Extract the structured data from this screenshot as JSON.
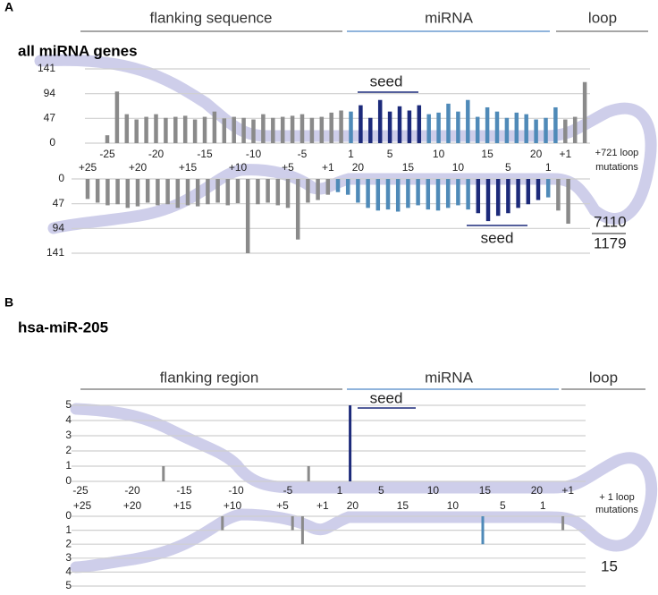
{
  "chart_data": [
    {
      "type": "bar",
      "panel": "A",
      "title": "all miRNA genes",
      "regions": [
        "flanking sequence",
        "miRNA",
        "loop"
      ],
      "seed_label": "seed",
      "loop_note": [
        "+721 loop",
        "mutations"
      ],
      "totals": [
        7110,
        1179
      ],
      "categories": [
        "-25",
        null,
        null,
        null,
        null,
        "-20",
        null,
        null,
        null,
        null,
        "-15",
        null,
        null,
        null,
        null,
        "-10",
        null,
        null,
        null,
        null,
        "-5",
        null,
        null,
        null,
        null,
        "1",
        null,
        null,
        null,
        "5",
        null,
        null,
        null,
        null,
        "10",
        null,
        null,
        null,
        null,
        "15",
        null,
        null,
        null,
        null,
        "20",
        null,
        null,
        "+1",
        null,
        null
      ],
      "values": [
        15,
        98,
        55,
        45,
        50,
        55,
        48,
        50,
        52,
        45,
        50,
        60,
        47,
        50,
        48,
        45,
        55,
        48,
        50,
        52,
        55,
        48,
        50,
        58,
        62,
        60,
        72,
        48,
        82,
        60,
        70,
        62,
        72,
        55,
        58,
        75,
        60,
        82,
        50,
        68,
        60,
        48,
        58,
        55,
        45,
        48,
        68,
        45,
        50,
        116
      ],
      "colors": [
        "#8a8a8a",
        "#8a8a8a",
        "#8a8a8a",
        "#8a8a8a",
        "#8a8a8a",
        "#8a8a8a",
        "#8a8a8a",
        "#8a8a8a",
        "#8a8a8a",
        "#8a8a8a",
        "#8a8a8a",
        "#8a8a8a",
        "#8a8a8a",
        "#8a8a8a",
        "#8a8a8a",
        "#8a8a8a",
        "#8a8a8a",
        "#8a8a8a",
        "#8a8a8a",
        "#8a8a8a",
        "#8a8a8a",
        "#8a8a8a",
        "#8a8a8a",
        "#8a8a8a",
        "#8a8a8a",
        "#4f8ab8",
        "#1c2a7a",
        "#1c2a7a",
        "#1c2a7a",
        "#1c2a7a",
        "#1c2a7a",
        "#1c2a7a",
        "#1c2a7a",
        "#4f8ab8",
        "#4f8ab8",
        "#4f8ab8",
        "#4f8ab8",
        "#4f8ab8",
        "#4f8ab8",
        "#4f8ab8",
        "#4f8ab8",
        "#4f8ab8",
        "#4f8ab8",
        "#4f8ab8",
        "#4f8ab8",
        "#4f8ab8",
        "#4f8ab8",
        "#8a8a8a",
        "#8a8a8a",
        "#8a8a8a"
      ],
      "ylim": [
        0,
        141
      ],
      "yticks": [
        0,
        47,
        94,
        141
      ],
      "grid": true,
      "y_reversed": false
    },
    {
      "type": "bar",
      "seed_label": "seed",
      "categories": [
        "+25",
        null,
        null,
        null,
        null,
        "+20",
        null,
        null,
        null,
        null,
        "+15",
        null,
        null,
        null,
        null,
        "+10",
        null,
        null,
        null,
        null,
        "+5",
        null,
        null,
        null,
        "+1",
        null,
        null,
        "20",
        null,
        null,
        null,
        null,
        "15",
        null,
        null,
        null,
        null,
        "10",
        null,
        null,
        null,
        null,
        "5",
        null,
        null,
        null,
        "1",
        null,
        null
      ],
      "values": [
        38,
        45,
        50,
        48,
        55,
        52,
        45,
        50,
        48,
        55,
        50,
        52,
        48,
        45,
        50,
        46,
        141,
        48,
        45,
        50,
        55,
        115,
        45,
        40,
        30,
        25,
        30,
        45,
        55,
        60,
        58,
        62,
        55,
        50,
        58,
        60,
        55,
        50,
        58,
        65,
        80,
        70,
        65,
        55,
        48,
        40,
        35,
        60,
        85
      ],
      "colors": [
        "#8a8a8a",
        "#8a8a8a",
        "#8a8a8a",
        "#8a8a8a",
        "#8a8a8a",
        "#8a8a8a",
        "#8a8a8a",
        "#8a8a8a",
        "#8a8a8a",
        "#8a8a8a",
        "#8a8a8a",
        "#8a8a8a",
        "#8a8a8a",
        "#8a8a8a",
        "#8a8a8a",
        "#8a8a8a",
        "#8a8a8a",
        "#8a8a8a",
        "#8a8a8a",
        "#8a8a8a",
        "#8a8a8a",
        "#8a8a8a",
        "#8a8a8a",
        "#8a8a8a",
        "#8a8a8a",
        "#4f8ab8",
        "#4f8ab8",
        "#4f8ab8",
        "#4f8ab8",
        "#4f8ab8",
        "#4f8ab8",
        "#4f8ab8",
        "#4f8ab8",
        "#4f8ab8",
        "#4f8ab8",
        "#4f8ab8",
        "#4f8ab8",
        "#4f8ab8",
        "#4f8ab8",
        "#1c2a7a",
        "#1c2a7a",
        "#1c2a7a",
        "#1c2a7a",
        "#1c2a7a",
        "#1c2a7a",
        "#1c2a7a",
        "#4f8ab8",
        "#8a8a8a",
        "#8a8a8a"
      ],
      "ylim": [
        0,
        141
      ],
      "yticks": [
        0,
        47,
        94,
        141
      ],
      "grid": true,
      "y_reversed": true
    },
    {
      "type": "bar",
      "panel": "B",
      "title": "hsa-miR-205",
      "regions": [
        "flanking region",
        "miRNA",
        "loop"
      ],
      "seed_label": "seed",
      "loop_note": [
        "+ 1 loop",
        "mutations"
      ],
      "totals": [
        15
      ],
      "categories": [
        "-25",
        null,
        null,
        null,
        null,
        "-20",
        null,
        null,
        null,
        null,
        "-15",
        null,
        null,
        null,
        null,
        "-10",
        null,
        null,
        null,
        null,
        "-5",
        null,
        null,
        null,
        null,
        "1",
        null,
        null,
        null,
        "5",
        null,
        null,
        null,
        null,
        "10",
        null,
        null,
        null,
        null,
        "15",
        null,
        null,
        null,
        null,
        "20",
        null,
        null,
        "+1",
        null,
        null
      ],
      "values": [
        0,
        0,
        0,
        0,
        0,
        0,
        0,
        0,
        1,
        0,
        0,
        0,
        0,
        0,
        0,
        0,
        0,
        0,
        0,
        0,
        0,
        0,
        1,
        0,
        0,
        0,
        5,
        0,
        0,
        0,
        0,
        0,
        0,
        0,
        0,
        0,
        0,
        0,
        0,
        0,
        0,
        0,
        0,
        0,
        0,
        0,
        0,
        0,
        0,
        0
      ],
      "colors": [
        "#8a8a8a",
        "#8a8a8a",
        "#8a8a8a",
        "#8a8a8a",
        "#8a8a8a",
        "#8a8a8a",
        "#8a8a8a",
        "#8a8a8a",
        "#8a8a8a",
        "#8a8a8a",
        "#8a8a8a",
        "#8a8a8a",
        "#8a8a8a",
        "#8a8a8a",
        "#8a8a8a",
        "#8a8a8a",
        "#8a8a8a",
        "#8a8a8a",
        "#8a8a8a",
        "#8a8a8a",
        "#8a8a8a",
        "#8a8a8a",
        "#8a8a8a",
        "#8a8a8a",
        "#8a8a8a",
        "#4f8ab8",
        "#1c2a7a",
        "#1c2a7a",
        "#1c2a7a",
        "#1c2a7a",
        "#1c2a7a",
        "#1c2a7a",
        "#1c2a7a",
        "#4f8ab8",
        "#4f8ab8",
        "#4f8ab8",
        "#4f8ab8",
        "#4f8ab8",
        "#4f8ab8",
        "#4f8ab8",
        "#4f8ab8",
        "#4f8ab8",
        "#4f8ab8",
        "#4f8ab8",
        "#4f8ab8",
        "#4f8ab8",
        "#4f8ab8",
        "#8a8a8a",
        "#8a8a8a",
        "#8a8a8a"
      ],
      "ylim": [
        0,
        5
      ],
      "yticks": [
        0,
        1,
        2,
        3,
        4,
        5
      ],
      "grid": true,
      "y_reversed": false
    },
    {
      "type": "bar",
      "categories": [
        "+25",
        null,
        null,
        null,
        null,
        "+20",
        null,
        null,
        null,
        null,
        "+15",
        null,
        null,
        null,
        null,
        "+10",
        null,
        null,
        null,
        null,
        "+5",
        null,
        null,
        null,
        "+1",
        null,
        null,
        "20",
        null,
        null,
        null,
        null,
        "15",
        null,
        null,
        null,
        null,
        "10",
        null,
        null,
        null,
        null,
        "5",
        null,
        null,
        null,
        "1",
        null,
        null
      ],
      "values": [
        0,
        0,
        0,
        0,
        0,
        0,
        0,
        0,
        0,
        0,
        0,
        0,
        0,
        0,
        1,
        0,
        0,
        0,
        0,
        0,
        0,
        1,
        2,
        0,
        0,
        0,
        0,
        0,
        0,
        0,
        0,
        0,
        0,
        0,
        0,
        0,
        0,
        0,
        0,
        0,
        2,
        0,
        0,
        0,
        0,
        0,
        0,
        0,
        1
      ],
      "colors": [
        "#8a8a8a",
        "#8a8a8a",
        "#8a8a8a",
        "#8a8a8a",
        "#8a8a8a",
        "#8a8a8a",
        "#8a8a8a",
        "#8a8a8a",
        "#8a8a8a",
        "#8a8a8a",
        "#8a8a8a",
        "#8a8a8a",
        "#8a8a8a",
        "#8a8a8a",
        "#8a8a8a",
        "#8a8a8a",
        "#8a8a8a",
        "#8a8a8a",
        "#8a8a8a",
        "#8a8a8a",
        "#8a8a8a",
        "#8a8a8a",
        "#8a8a8a",
        "#8a8a8a",
        "#8a8a8a",
        "#4f8ab8",
        "#4f8ab8",
        "#4f8ab8",
        "#4f8ab8",
        "#4f8ab8",
        "#4f8ab8",
        "#4f8ab8",
        "#4f8ab8",
        "#4f8ab8",
        "#4f8ab8",
        "#4f8ab8",
        "#4f8ab8",
        "#4f8ab8",
        "#4f8ab8",
        "#1c2a7a",
        "#4f8ab8",
        "#1c2a7a",
        "#1c2a7a",
        "#1c2a7a",
        "#1c2a7a",
        "#1c2a7a",
        "#4f8ab8",
        "#8a8a8a",
        "#8a8a8a"
      ],
      "ylim": [
        0,
        5
      ],
      "yticks": [
        0,
        1,
        2,
        3,
        4,
        5
      ],
      "grid": true,
      "y_reversed": true
    }
  ]
}
